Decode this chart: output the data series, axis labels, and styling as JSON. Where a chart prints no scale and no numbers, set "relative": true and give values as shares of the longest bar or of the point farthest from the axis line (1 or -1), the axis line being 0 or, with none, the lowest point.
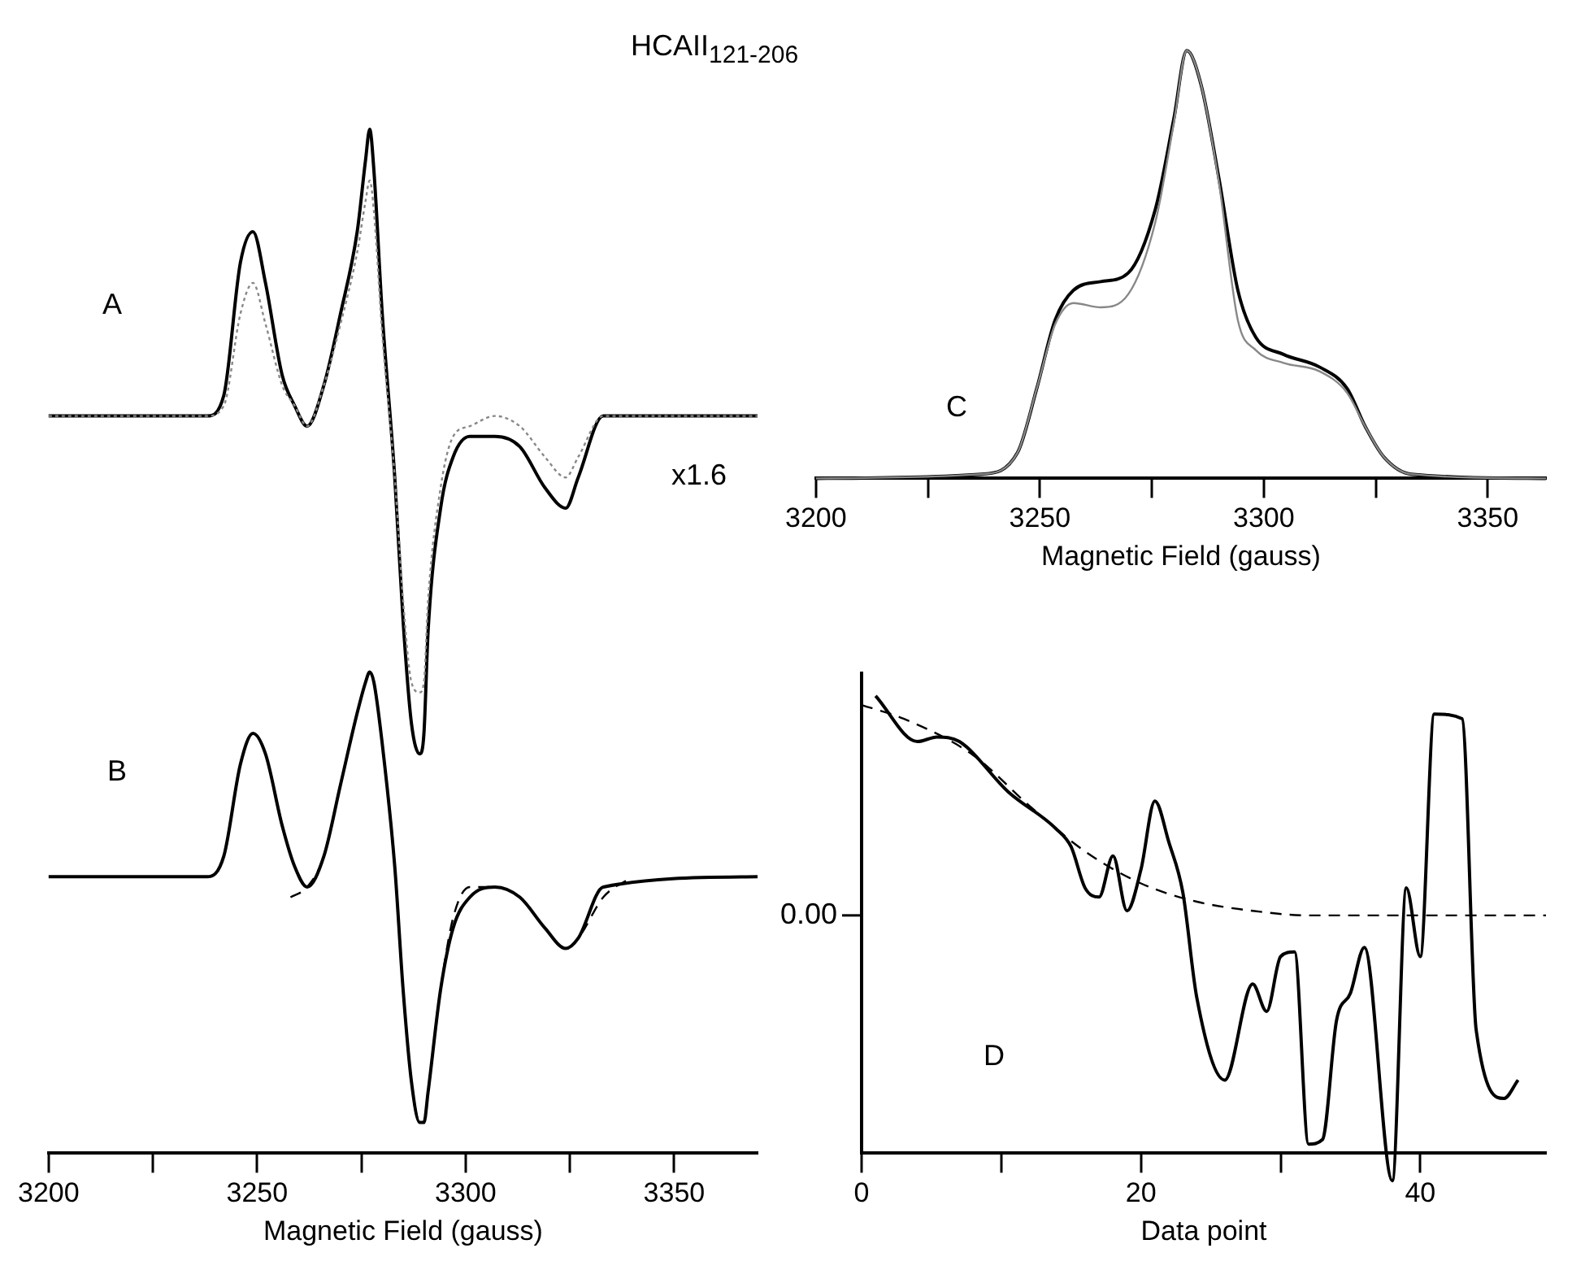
{
  "chart_data": [
    {
      "type": "line",
      "title": "HCAII$_{121-206}$",
      "xlabel": "Magnetic Field (gauss)",
      "relative": true,
      "xlim": [
        3200,
        3370
      ],
      "xticks": [
        3200,
        {
          "value": 3225,
          "label": null
        },
        3250,
        {
          "value": 3275,
          "label": null
        },
        3300,
        {
          "value": 3325,
          "label": null
        },
        3350
      ],
      "grid": false,
      "legend": false,
      "marker": "none",
      "annotations": [
        "A",
        "B",
        "x1.6"
      ],
      "series": [
        {
          "color": "#000000",
          "line_style": "solid",
          "x": [
            3200,
            3238,
            3242,
            3246,
            3249,
            3252,
            3256,
            3259,
            3262,
            3266,
            3270,
            3274,
            3276,
            3277,
            3278,
            3280,
            3283,
            3285,
            3287,
            3289,
            3290,
            3291,
            3294,
            3297,
            3301,
            3307,
            3313,
            3319,
            3324,
            3327,
            3333,
            3370
          ],
          "values": [
            0.72,
            0.72,
            0.74,
            0.87,
            0.9,
            0.85,
            0.76,
            0.73,
            0.71,
            0.75,
            0.82,
            0.9,
            0.97,
            1.0,
            0.96,
            0.82,
            0.66,
            0.52,
            0.42,
            0.39,
            0.41,
            0.51,
            0.63,
            0.68,
            0.7,
            0.7,
            0.69,
            0.65,
            0.63,
            0.66,
            0.72,
            0.72
          ]
        },
        {
          "color": "#888888",
          "line_style": "dotted",
          "x": [
            3200,
            3238,
            3242,
            3246,
            3249,
            3252,
            3256,
            3259,
            3262,
            3266,
            3270,
            3274,
            3276,
            3277,
            3278,
            3280,
            3283,
            3285,
            3287,
            3289,
            3290,
            3291,
            3294,
            3297,
            3301,
            3307,
            3313,
            3319,
            3324,
            3327,
            3333,
            3370
          ],
          "values": [
            0.72,
            0.72,
            0.73,
            0.82,
            0.85,
            0.81,
            0.75,
            0.73,
            0.71,
            0.75,
            0.81,
            0.88,
            0.93,
            0.95,
            0.92,
            0.8,
            0.66,
            0.54,
            0.46,
            0.45,
            0.46,
            0.54,
            0.65,
            0.7,
            0.71,
            0.72,
            0.71,
            0.68,
            0.66,
            0.68,
            0.72,
            0.72
          ]
        },
        {
          "color": "#000000",
          "line_style": "solid",
          "x": [
            3200,
            3238,
            3242,
            3246,
            3249,
            3252,
            3256,
            3259,
            3262,
            3266,
            3270,
            3274,
            3276,
            3277,
            3278,
            3280,
            3283,
            3285,
            3287,
            3289,
            3290,
            3291,
            3294,
            3297,
            3301,
            3307,
            3313,
            3319,
            3324,
            3327,
            3333,
            3370
          ],
          "values": [
            0.27,
            0.27,
            0.29,
            0.38,
            0.41,
            0.39,
            0.32,
            0.28,
            0.26,
            0.29,
            0.36,
            0.43,
            0.46,
            0.47,
            0.46,
            0.4,
            0.28,
            0.16,
            0.07,
            0.03,
            0.03,
            0.06,
            0.16,
            0.22,
            0.25,
            0.26,
            0.25,
            0.22,
            0.2,
            0.21,
            0.26,
            0.27
          ]
        },
        {
          "color": "#000000",
          "line_style": "dashed",
          "x": [
            3258,
            3262,
            3266,
            3270,
            3274,
            3276,
            3277,
            3278,
            3280,
            3283,
            3285,
            3287,
            3289,
            3290,
            3291,
            3294,
            3297,
            3301,
            3307,
            3313,
            3319,
            3324,
            3327,
            3333,
            3340
          ],
          "values": [
            0.25,
            0.26,
            0.29,
            0.36,
            0.43,
            0.46,
            0.47,
            0.46,
            0.4,
            0.28,
            0.16,
            0.07,
            0.03,
            0.03,
            0.06,
            0.16,
            0.23,
            0.26,
            0.26,
            0.25,
            0.22,
            0.2,
            0.21,
            0.25,
            0.27
          ]
        }
      ]
    },
    {
      "type": "line",
      "xlabel": "Magnetic Field (gauss)",
      "relative": true,
      "xlim": [
        3200,
        3363
      ],
      "xticks": [
        3200,
        {
          "value": 3225,
          "label": null
        },
        3250,
        {
          "value": 3275,
          "label": null
        },
        3300,
        {
          "value": 3325,
          "label": null
        },
        3350
      ],
      "grid": false,
      "legend": false,
      "marker": "none",
      "annotations": [
        "C"
      ],
      "series": [
        {
          "color": "#000000",
          "line_style": "solid",
          "x": [
            3200,
            3237,
            3245,
            3249.3,
            3253.4,
            3257.5,
            3263.6,
            3269.7,
            3275.8,
            3279.9,
            3282.8,
            3286,
            3290,
            3294.2,
            3298.2,
            3304.4,
            3312.5,
            3318.6,
            3322.7,
            3326.8,
            3332.9,
            3363
          ],
          "values": [
            0.0,
            0.01,
            0.06,
            0.21,
            0.37,
            0.44,
            0.46,
            0.48,
            0.63,
            0.84,
            1.0,
            0.92,
            0.7,
            0.44,
            0.33,
            0.29,
            0.26,
            0.21,
            0.12,
            0.05,
            0.01,
            0.0
          ]
        },
        {
          "color": "#888888",
          "line_style": "solid",
          "x": [
            3200,
            3237,
            3245,
            3249.3,
            3253.4,
            3257.5,
            3263.6,
            3269.7,
            3275.8,
            3279.9,
            3282.8,
            3286,
            3290,
            3294.2,
            3298.2,
            3304.4,
            3312.5,
            3318.6,
            3322.7,
            3326.8,
            3332.9,
            3363
          ],
          "values": [
            0.0,
            0.01,
            0.06,
            0.21,
            0.36,
            0.41,
            0.4,
            0.43,
            0.6,
            0.83,
            1.0,
            0.92,
            0.69,
            0.37,
            0.3,
            0.27,
            0.25,
            0.2,
            0.12,
            0.05,
            0.01,
            0.0
          ]
        }
      ]
    },
    {
      "type": "line",
      "xlabel": "Data point",
      "relative": true,
      "xlim": [
        0,
        49
      ],
      "xticks": [
        0,
        {
          "value": 10,
          "label": null
        },
        20,
        {
          "value": 30,
          "label": null
        },
        40
      ],
      "grid": false,
      "legend": false,
      "marker": "none",
      "annotations": [
        "D",
        "0.00"
      ],
      "series": [
        {
          "color": "#000000",
          "line_style": "solid",
          "x": [
            1,
            4,
            5.4,
            7,
            10.5,
            13.9,
            15,
            16,
            17,
            18,
            19,
            20,
            21,
            22,
            23,
            24,
            26,
            28,
            29,
            30,
            31,
            32,
            33,
            34,
            35,
            36,
            38,
            39,
            40,
            41,
            43,
            44,
            46,
            47
          ],
          "values": [
            1.0,
            0.9,
            0.91,
            0.9,
            0.79,
            0.71,
            0.67,
            0.58,
            0.56,
            0.65,
            0.53,
            0.62,
            0.77,
            0.68,
            0.57,
            0.34,
            0.16,
            0.37,
            0.31,
            0.43,
            0.44,
            0.02,
            0.03,
            0.29,
            0.35,
            0.45,
            -0.06,
            0.58,
            0.43,
            0.96,
            0.95,
            0.27,
            0.12,
            0.16
          ]
        },
        {
          "color": "#000000",
          "line_style": "dashed",
          "x": [
            0,
            3,
            8,
            12,
            16,
            20,
            24,
            28,
            32,
            36,
            40,
            49
          ],
          "values": [
            0.98,
            0.95,
            0.87,
            0.76,
            0.66,
            0.59,
            0.55,
            0.53,
            0.52,
            0.52,
            0.52,
            0.52
          ]
        }
      ]
    }
  ]
}
